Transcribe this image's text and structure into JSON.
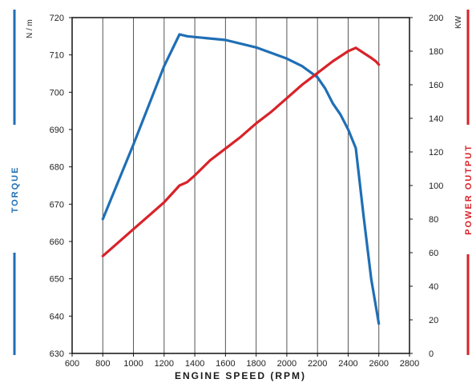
{
  "chart_data": {
    "type": "line",
    "xlabel": "ENGINE SPEED (RPM)",
    "x_ticks": [
      "600",
      "800",
      "1000",
      "1200",
      "1400",
      "1600",
      "1800",
      "2000",
      "2200",
      "2400",
      "2600",
      "2800"
    ],
    "xlim": [
      600,
      2800
    ],
    "y_left": {
      "label": "TORQUE",
      "unit": "N / m",
      "ylim": [
        630,
        720
      ],
      "ticks": [
        "630",
        "640",
        "650",
        "660",
        "670",
        "680",
        "690",
        "700",
        "710",
        "720"
      ]
    },
    "y_right": {
      "label": "POWER OUTPUT",
      "unit": "KW",
      "ylim": [
        0,
        200
      ],
      "ticks": [
        "0",
        "20",
        "40",
        "60",
        "80",
        "100",
        "120",
        "140",
        "160",
        "180",
        "200"
      ]
    },
    "grid": "vertical",
    "series": [
      {
        "axis": "left",
        "color": "#1f6fb5",
        "x": [
          800,
          1000,
          1200,
          1300,
          1350,
          1400,
          1600,
          1800,
          2000,
          2100,
          2200,
          2250,
          2300,
          2350,
          2400,
          2450,
          2500,
          2550,
          2600
        ],
        "y": [
          666,
          686,
          707,
          715.5,
          715,
          714.8,
          714,
          712,
          709,
          707,
          704,
          701,
          697,
          694,
          690,
          685,
          667,
          650,
          638
        ]
      },
      {
        "axis": "right",
        "color": "#d8232a",
        "x": [
          800,
          900,
          1000,
          1100,
          1200,
          1300,
          1350,
          1400,
          1500,
          1600,
          1700,
          1800,
          1900,
          2000,
          2100,
          2200,
          2300,
          2400,
          2450,
          2500,
          2550,
          2580,
          2600
        ],
        "y": [
          58,
          66,
          74,
          82,
          90,
          100,
          102,
          106,
          115,
          122,
          129,
          137,
          144,
          152,
          160,
          167,
          174,
          180,
          182,
          179,
          176,
          174,
          172
        ]
      }
    ]
  },
  "colors": {
    "torque": "#1f6fb5",
    "power": "#d8232a",
    "grid": "#555555",
    "axis": "#111111"
  }
}
